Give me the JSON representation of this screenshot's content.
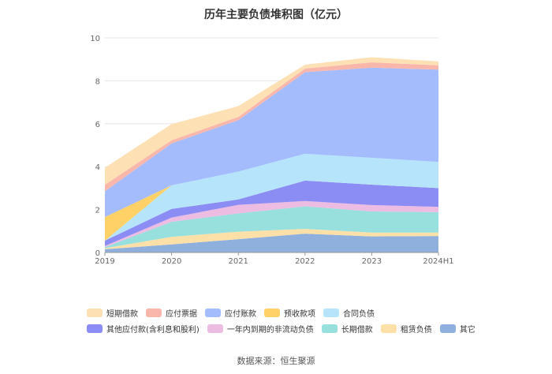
{
  "title": "历年主要负债堆积图（亿元）",
  "source": "数据来源：恒生聚源",
  "chart_data": {
    "type": "area",
    "stacked": true,
    "title": "历年主要负债堆积图（亿元）",
    "categories": [
      "2019",
      "2020",
      "2021",
      "2022",
      "2023",
      "2024H1"
    ],
    "ylim": [
      0,
      10
    ],
    "yticks": [
      "0",
      "2",
      "4",
      "6",
      "8",
      "10"
    ],
    "grid": true,
    "legend_position": "bottom",
    "series": [
      {
        "name": "其它",
        "color": "#8fb0dc",
        "values": [
          0.15,
          0.38,
          0.62,
          0.88,
          0.75,
          0.77
        ]
      },
      {
        "name": "租赁负债",
        "color": "#fde0a8",
        "values": [
          0.05,
          0.35,
          0.35,
          0.22,
          0.18,
          0.16
        ]
      },
      {
        "name": "长期借款",
        "color": "#97e0de",
        "values": [
          0.05,
          0.7,
          0.85,
          1.05,
          0.98,
          0.95
        ]
      },
      {
        "name": "一年内到期的非流动负债",
        "color": "#ecbce3",
        "values": [
          0.05,
          0.2,
          0.4,
          0.25,
          0.3,
          0.25
        ]
      },
      {
        "name": "其他应付款(含利息和股利)",
        "color": "#8c8cf5",
        "values": [
          0.25,
          0.4,
          0.25,
          0.95,
          0.95,
          0.87
        ]
      },
      {
        "name": "合同负债",
        "color": "#b6e5fb",
        "values": [
          0.0,
          1.1,
          1.3,
          1.25,
          1.25,
          1.22
        ]
      },
      {
        "name": "预收款项",
        "color": "#ffd166",
        "values": [
          1.1,
          0.0,
          0.0,
          0.0,
          0.0,
          0.0
        ]
      },
      {
        "name": "应付账款",
        "color": "#a4bcfc",
        "values": [
          1.2,
          1.95,
          2.4,
          3.8,
          4.2,
          4.3
        ]
      },
      {
        "name": "应付票据",
        "color": "#f9b7ab",
        "values": [
          0.3,
          0.15,
          0.15,
          0.17,
          0.25,
          0.2
        ]
      },
      {
        "name": "短期借款",
        "color": "#fde0b4",
        "values": [
          0.8,
          0.75,
          0.5,
          0.18,
          0.24,
          0.18
        ]
      }
    ]
  },
  "legend_rows": [
    [
      "短期借款",
      "应付票据",
      "应付账款",
      "预收款项",
      "合同负债"
    ],
    [
      "其他应付款(含利息和股利)",
      "一年内到期的非流动负债",
      "长期借款",
      "租赁负债",
      "其它"
    ]
  ]
}
